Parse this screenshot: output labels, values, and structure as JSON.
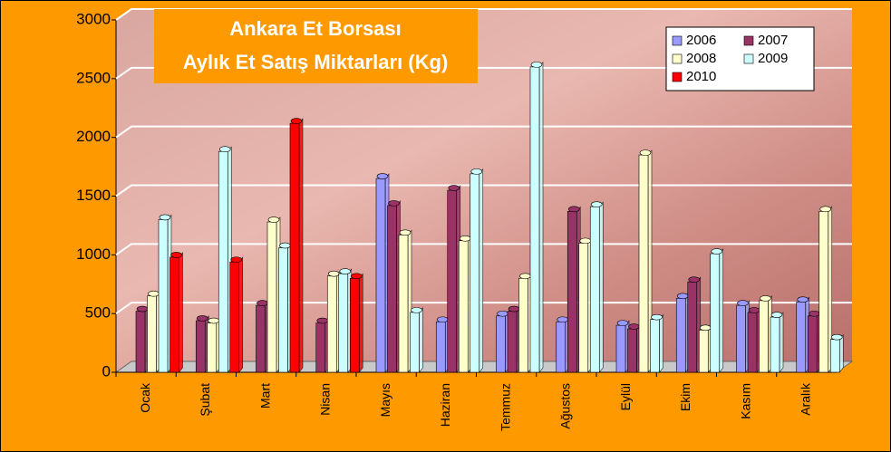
{
  "chart_data": {
    "type": "bar",
    "title": "Ankara Et Borsası",
    "subtitle": "Aylık Et Satış Miktarları (Kg)",
    "categories": [
      "Ocak",
      "Şubat",
      "Mart",
      "Nisan",
      "Mayıs",
      "Haziran",
      "Temmuz",
      "Ağustos",
      "Eylül",
      "Ekim",
      "Kasım",
      "Aralık"
    ],
    "series": [
      {
        "name": "2006",
        "color": "#9999ff",
        "values": [
          null,
          null,
          null,
          null,
          1650,
          430,
          480,
          430,
          400,
          630,
          570,
          600
        ]
      },
      {
        "name": "2007",
        "color": "#993366",
        "values": [
          520,
          440,
          570,
          420,
          1420,
          1550,
          520,
          1370,
          370,
          770,
          510,
          480
        ]
      },
      {
        "name": "2008",
        "color": "#ffffcc",
        "values": [
          650,
          420,
          1280,
          820,
          1170,
          1120,
          800,
          1100,
          1850,
          360,
          610,
          1370
        ]
      },
      {
        "name": "2009",
        "color": "#ccffff",
        "values": [
          1300,
          1880,
          1060,
          840,
          510,
          1690,
          2600,
          1410,
          450,
          1010,
          470,
          280
        ]
      },
      {
        "name": "2010",
        "color": "#ff0000",
        "values": [
          980,
          940,
          2120,
          800,
          null,
          null,
          null,
          null,
          null,
          null,
          null,
          null
        ]
      }
    ],
    "ylim": [
      0,
      3000
    ],
    "yticks": [
      0,
      500,
      1000,
      1500,
      2000,
      2500,
      3000
    ],
    "grid": true,
    "legend": "top-right"
  }
}
